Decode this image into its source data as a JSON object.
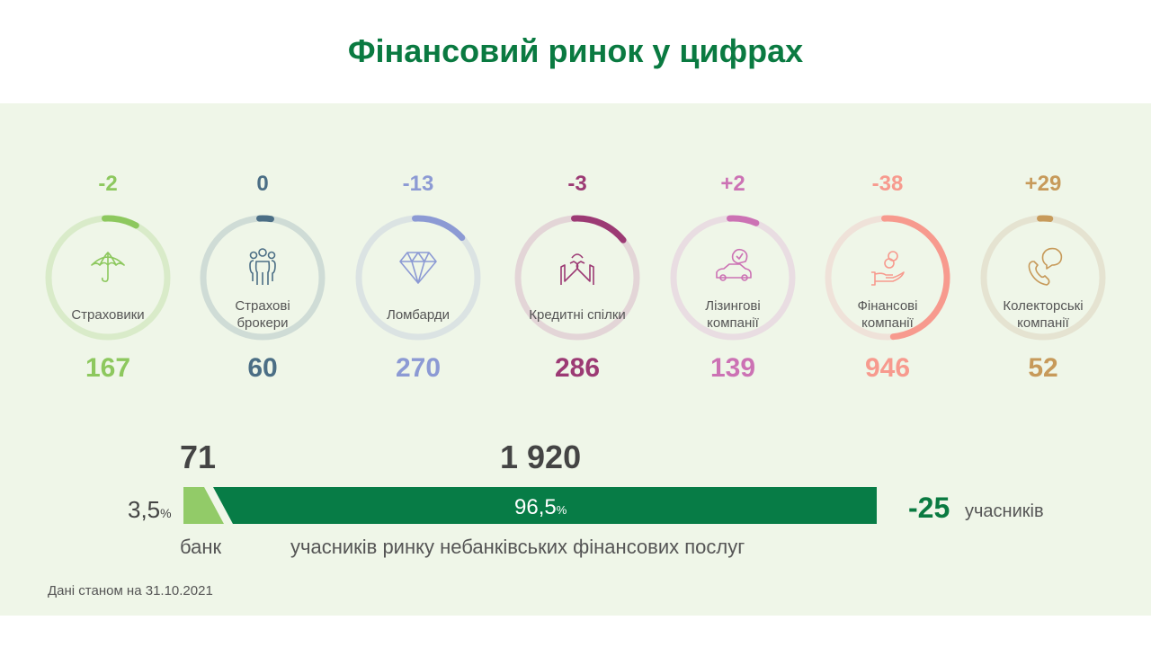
{
  "title": "Фінансовий ринок у цифрах",
  "total": 1920,
  "categories": [
    {
      "label": "Страховики",
      "delta": "-2",
      "count": "167",
      "value": 167,
      "color": "#8dc85e",
      "track": "#d9ebc9",
      "icon": "umbrella-icon"
    },
    {
      "label": "Страхові брокери",
      "delta": "0",
      "count": "60",
      "value": 60,
      "color": "#4b6e85",
      "track": "#cfdcd6",
      "icon": "people-icon"
    },
    {
      "label": "Ломбарди",
      "delta": "-13",
      "count": "270",
      "value": 270,
      "color": "#8c9ad4",
      "track": "#dbe3e3",
      "icon": "diamond-icon"
    },
    {
      "label": "Кредитні спілки",
      "delta": "-3",
      "count": "286",
      "value": 286,
      "color": "#9c3a74",
      "track": "#e3d5d7",
      "icon": "handshake-icon"
    },
    {
      "label": "Лізингові компанії",
      "delta": "+2",
      "count": "139",
      "value": 139,
      "color": "#cc72b4",
      "track": "#e9dde2",
      "icon": "car-icon"
    },
    {
      "label": "Фінансові компанії",
      "delta": "-38",
      "count": "946",
      "value": 946,
      "color": "#f79a8e",
      "track": "#efe2d9",
      "icon": "hand-coins-icon"
    },
    {
      "label": "Колекторські компанії",
      "delta": "+29",
      "count": "52",
      "value": 52,
      "color": "#c79a5a",
      "track": "#e5e3d1",
      "icon": "phone-chat-icon"
    }
  ],
  "summary": {
    "banks_count": "71",
    "banks_pct": "3,5",
    "banks_label": "банк",
    "nbfi_count": "1 920",
    "nbfi_pct": "96,5",
    "nbfi_label": "учасників ринку небанківських фінансових послуг",
    "pct_sign": "%",
    "change": "-25",
    "change_label": "учасників",
    "bank_color": "#92cb68",
    "nbfi_color": "#077c46"
  },
  "footnote": "Дані станом на 31.10.2021"
}
